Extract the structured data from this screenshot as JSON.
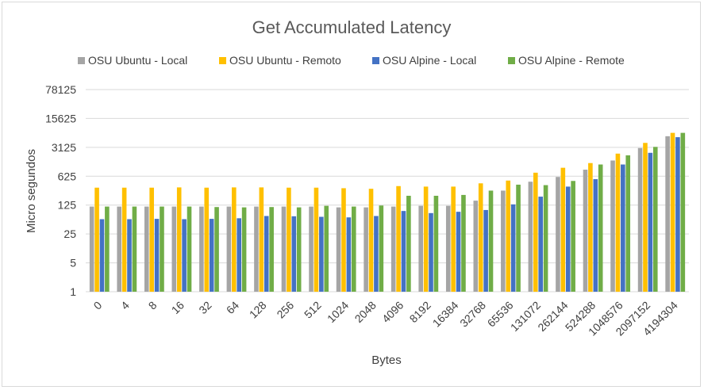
{
  "chart_data": {
    "type": "bar",
    "title": "Get Accumulated Latency",
    "xlabel": "Bytes",
    "ylabel": "Micro segundos",
    "yscale": "log5",
    "ylim": [
      1,
      78125
    ],
    "yticks": [
      "1",
      "5",
      "25",
      "125",
      "625",
      "3125",
      "15625",
      "78125"
    ],
    "grid": true,
    "legend_position": "top",
    "categories": [
      "0",
      "4",
      "8",
      "16",
      "32",
      "64",
      "128",
      "256",
      "512",
      "1024",
      "2048",
      "4096",
      "8192",
      "16384",
      "32768",
      "65536",
      "131072",
      "262144",
      "524288",
      "1048576",
      "2097152",
      "4194304"
    ],
    "series": [
      {
        "name": "OSU Ubuntu - Local",
        "color": "#a5a5a5",
        "values": [
          115,
          115,
          115,
          115,
          115,
          115,
          115,
          115,
          115,
          110,
          110,
          115,
          120,
          120,
          160,
          280,
          460,
          600,
          900,
          1500,
          3000,
          5800
        ]
      },
      {
        "name": "OSU Ubuntu - Remoto",
        "color": "#ffc000",
        "values": [
          330,
          330,
          330,
          335,
          330,
          335,
          335,
          330,
          330,
          320,
          310,
          360,
          350,
          350,
          420,
          490,
          760,
          1000,
          1300,
          2200,
          4000,
          7000
        ]
      },
      {
        "name": "OSU Alpine - Local",
        "color": "#4472c4",
        "values": [
          57,
          57,
          58,
          57,
          58,
          60,
          68,
          67,
          65,
          63,
          68,
          90,
          80,
          86,
          95,
          130,
          200,
          350,
          530,
          1200,
          2300,
          5500
        ]
      },
      {
        "name": "OSU Alpine - Remote",
        "color": "#70ad47",
        "values": [
          115,
          115,
          115,
          115,
          112,
          110,
          112,
          110,
          120,
          115,
          122,
          210,
          210,
          220,
          280,
          390,
          380,
          480,
          1200,
          2000,
          3200,
          7000
        ]
      }
    ]
  }
}
